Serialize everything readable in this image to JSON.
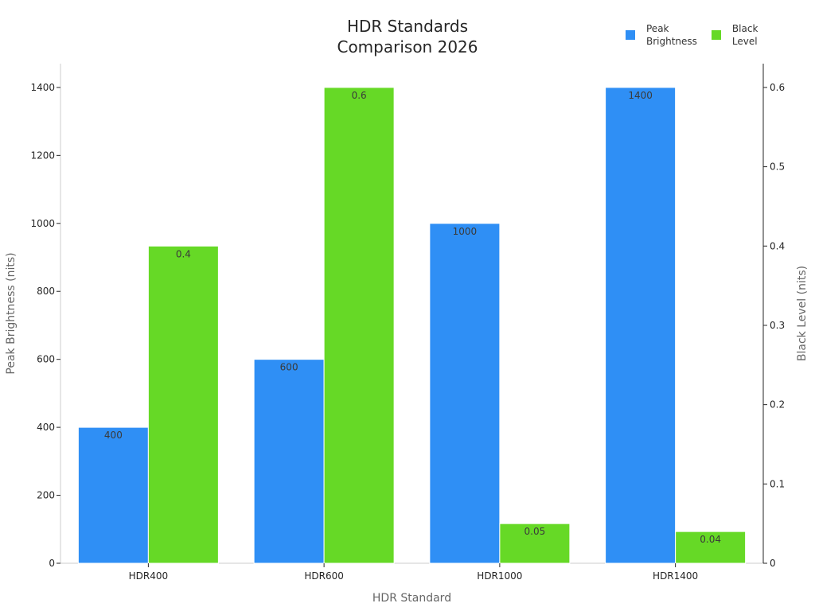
{
  "chart_data": {
    "type": "bar",
    "title": "HDR Standards Comparison 2026",
    "title_lines": [
      "HDR Standards",
      "Comparison 2026"
    ],
    "categories": [
      "HDR400",
      "HDR600",
      "HDR1000",
      "HDR1400"
    ],
    "xlabel": "HDR Standard",
    "ylabel": "Peak Brightness (nits)",
    "y2label": "Black Level (nits)",
    "series": [
      {
        "name": "Peak Brightness",
        "axis": "left",
        "color": "#2f8ff5",
        "values": [
          400,
          600,
          1000,
          1400
        ],
        "labels": [
          "400",
          "600",
          "1000",
          "1400"
        ]
      },
      {
        "name": "Black Level",
        "axis": "right",
        "color": "#66d926",
        "values": [
          0.4,
          0.6,
          0.05,
          0.04
        ],
        "labels": [
          "0.4",
          "0.6",
          "0.05",
          "0.04"
        ]
      }
    ],
    "ylim": [
      0,
      1470
    ],
    "y2lim": [
      0,
      0.63
    ],
    "yticks": [
      "0",
      "200",
      "400",
      "600",
      "800",
      "1000",
      "1200",
      "1400"
    ],
    "y2ticks": [
      "0",
      "0.1",
      "0.2",
      "0.3",
      "0.4",
      "0.5",
      "0.6"
    ],
    "legend_position": "top-right",
    "grid": false
  },
  "legend": {
    "items": [
      {
        "label": "Peak\nBrightness",
        "color": "#2f8ff5"
      },
      {
        "label": "Black\nLevel",
        "color": "#66d926"
      }
    ]
  }
}
